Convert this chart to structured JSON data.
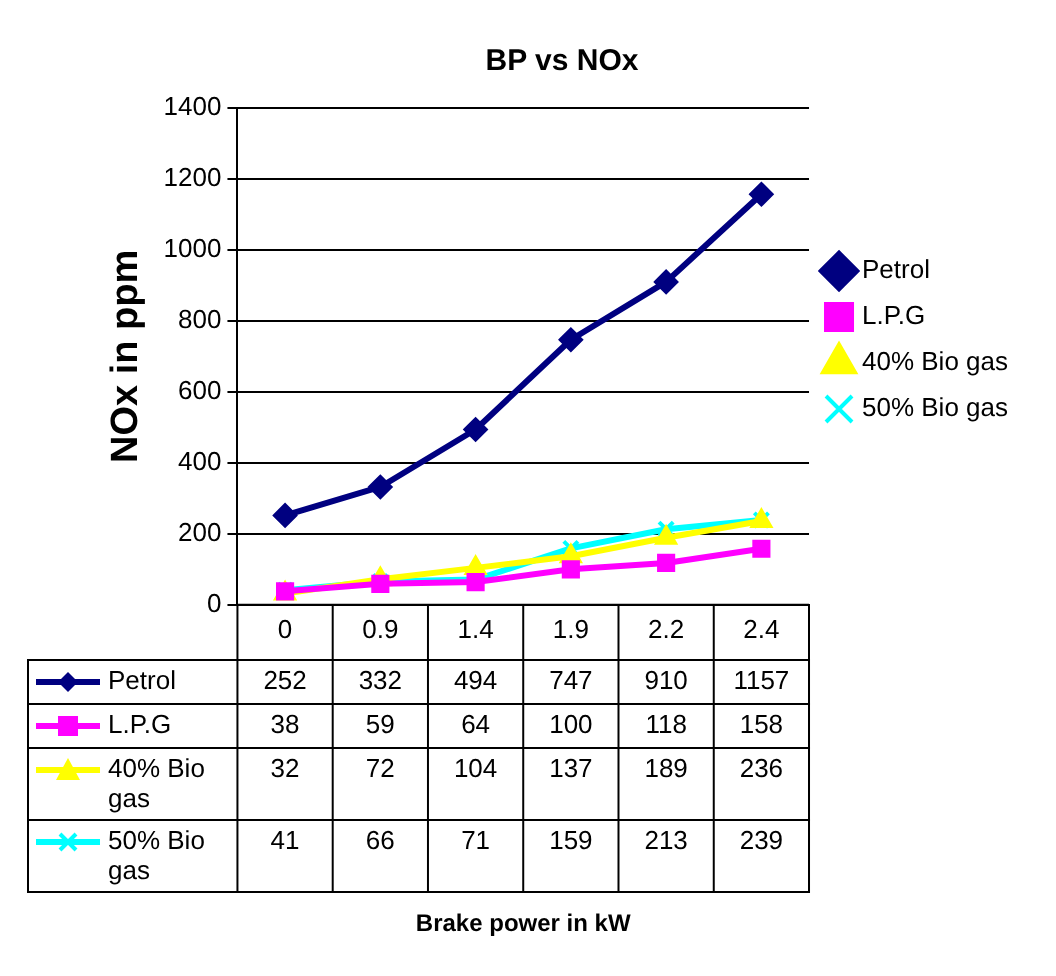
{
  "chart_data": {
    "type": "line",
    "title": "BP vs NOx",
    "annotations": [
      "Brake power in kW"
    ],
    "ylabel": "NOx in ppm",
    "categories": [
      "0",
      "0.9",
      "1.4",
      "1.9",
      "2.2",
      "2.4"
    ],
    "series": [
      {
        "name": "Petrol",
        "color": "#000080",
        "marker": "diamond",
        "values": [
          252,
          332,
          494,
          747,
          910,
          1157
        ]
      },
      {
        "name": "L.P.G",
        "color": "#ff00ff",
        "marker": "square",
        "values": [
          38,
          59,
          64,
          100,
          118,
          158
        ]
      },
      {
        "name": "40% Bio gas",
        "color": "#ffff00",
        "marker": "triangle",
        "values": [
          32,
          72,
          104,
          137,
          189,
          236
        ]
      },
      {
        "name": "50% Bio gas",
        "color": "#00ffff",
        "marker": "cross",
        "values": [
          41,
          66,
          71,
          159,
          213,
          239
        ]
      }
    ],
    "ylim": [
      0,
      1400
    ],
    "yticks": [
      0,
      200,
      400,
      600,
      800,
      1000,
      1200,
      1400
    ],
    "grid": "y",
    "legend": "right",
    "data_labels": true
  }
}
